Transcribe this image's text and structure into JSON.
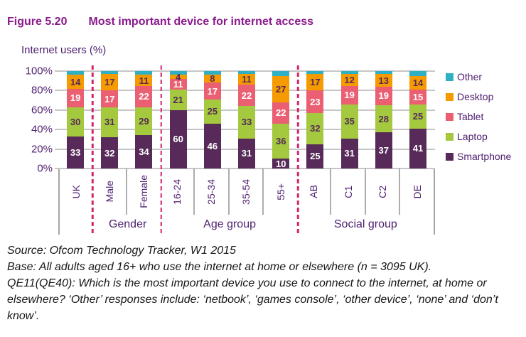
{
  "title": {
    "figure_label": "Figure 5.20",
    "text": "Most important device for internet access"
  },
  "y_axis_label": "Internet users (%)",
  "chart_data": {
    "type": "bar",
    "stacked": true,
    "title": "Most important device for internet access",
    "ylabel": "Internet users (%)",
    "ylim": [
      0,
      100
    ],
    "grid": true,
    "y_ticks": [
      "100%",
      "80%",
      "60%",
      "40%",
      "20%",
      "0%"
    ],
    "categories": [
      "UK",
      "Male",
      "Female",
      "16-24",
      "25-34",
      "35-54",
      "55+",
      "AB",
      "C1",
      "C2",
      "DE"
    ],
    "groups": [
      {
        "label": "",
        "span": 1
      },
      {
        "label": "Gender",
        "span": 2
      },
      {
        "label": "Age group",
        "span": 4
      },
      {
        "label": "Social group",
        "span": 4
      }
    ],
    "series": [
      {
        "name": "Smartphone",
        "color": "#572A59",
        "label_color": "#FFFFFF",
        "show_labels": true,
        "values": [
          33,
          32,
          34,
          60,
          46,
          31,
          10,
          25,
          31,
          37,
          41
        ]
      },
      {
        "name": "Laptop",
        "color": "#A4C93E",
        "label_color": "#572A59",
        "show_labels": true,
        "values": [
          30,
          31,
          29,
          21,
          25,
          33,
          36,
          32,
          35,
          28,
          25
        ]
      },
      {
        "name": "Tablet",
        "color": "#EB5F72",
        "label_color": "#FFFFFF",
        "show_labels": true,
        "values": [
          19,
          17,
          22,
          11,
          17,
          22,
          22,
          23,
          19,
          19,
          15
        ]
      },
      {
        "name": "Desktop",
        "color": "#F59B00",
        "label_color": "#572A59",
        "show_labels": true,
        "values": [
          14,
          17,
          11,
          4,
          8,
          11,
          27,
          17,
          12,
          13,
          14
        ]
      },
      {
        "name": "Other",
        "color": "#2FB0C4",
        "label_color": "#572A59",
        "show_labels": false,
        "values": [
          4,
          3,
          4,
          4,
          4,
          3,
          5,
          3,
          3,
          3,
          5
        ]
      }
    ],
    "legend": [
      "Other",
      "Desktop",
      "Tablet",
      "Laptop",
      "Smartphone"
    ],
    "legend_position": "right"
  },
  "footer": {
    "source": "Source: Ofcom Technology Tracker, W1 2015",
    "base": "Base: All adults aged 16+ who use the internet at home or elsewhere (n = 3095 UK).",
    "question": "QE11(QE40): Which is the most important device you use to connect to the internet, at home or elsewhere? ‘Other’ responses include: ‘netbook’, ‘games console’, ‘other device’, ‘none’ and ‘don’t know’."
  },
  "colors": {
    "title_purple": "#8A1A8C",
    "text_purple": "#4F2170",
    "group_separator": "#D6246C",
    "gridline_gray": "#C6C6C6"
  }
}
